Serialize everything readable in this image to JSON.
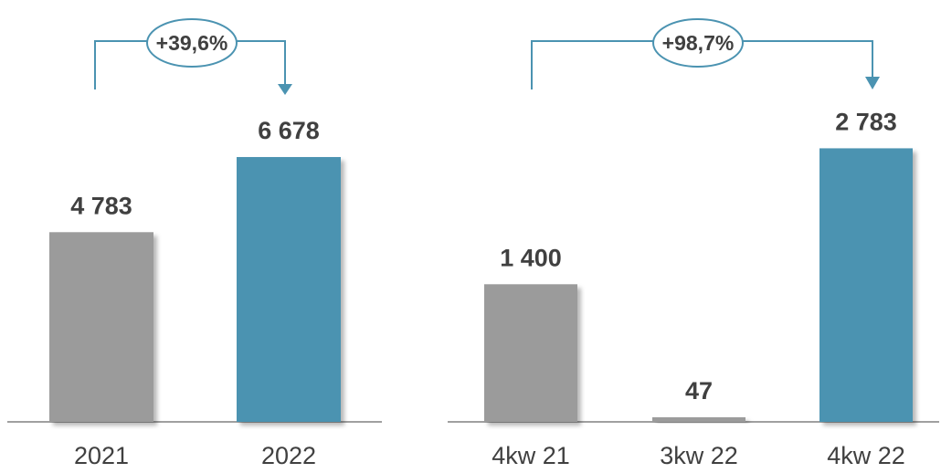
{
  "colors": {
    "previous": "#9b9b9b",
    "current": "#4b93b1",
    "connector": "#4b93b1",
    "axis": "#a0a0a0",
    "text": "#404040"
  },
  "chart_data": [
    {
      "type": "bar",
      "categories": [
        "2021",
        "2022"
      ],
      "values": [
        4783,
        6678
      ],
      "value_labels": [
        "4 783",
        "6 678"
      ],
      "bar_colors": [
        "#9b9b9b",
        "#4b93b1"
      ],
      "ylim": [
        0,
        7000
      ],
      "grid": false,
      "change": {
        "label": "+39,6%",
        "from": "2021",
        "to": "2022"
      }
    },
    {
      "type": "bar",
      "categories": [
        "4kw 21",
        "3kw 22",
        "4kw 22"
      ],
      "values": [
        1400,
        47,
        2783
      ],
      "value_labels": [
        "1 400",
        "47",
        "2 783"
      ],
      "bar_colors": [
        "#9b9b9b",
        "#9b9b9b",
        "#4b93b1"
      ],
      "ylim": [
        0,
        3400
      ],
      "grid": false,
      "change": {
        "label": "+98,7%",
        "from": "4kw 21",
        "to": "4kw 22"
      }
    }
  ]
}
